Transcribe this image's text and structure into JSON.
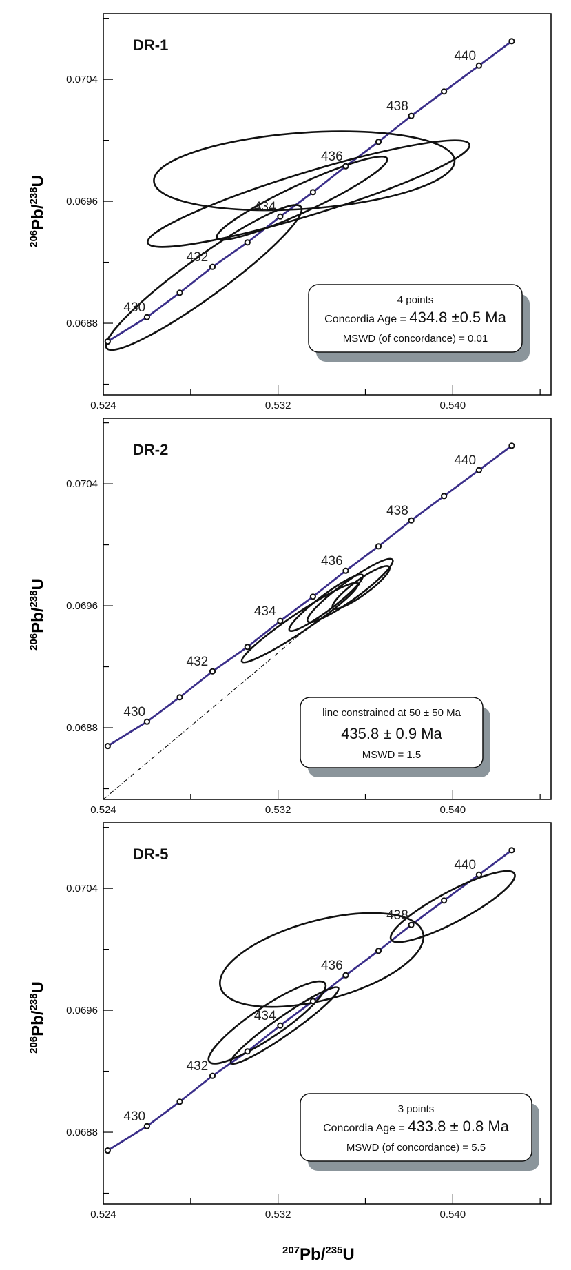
{
  "chart_data": [
    {
      "type": "scatter",
      "panel_label": "DR-1",
      "xlim": [
        0.524,
        0.5445
      ],
      "ylim": [
        0.06833,
        0.07083
      ],
      "x_ticks": [
        "0.524",
        "0.532",
        "0.540"
      ],
      "y_ticks": [
        "0.0688",
        "0.0696",
        "0.0704"
      ],
      "concordia": {
        "ages_ma": [
          429,
          430,
          431,
          432,
          433,
          434,
          435,
          436,
          437,
          438,
          439,
          440,
          441
        ],
        "labels": [
          "430",
          "432",
          "434",
          "436",
          "438",
          "440"
        ],
        "points": [
          [
            0.5242,
            0.06868
          ],
          [
            0.526,
            0.06884
          ],
          [
            0.5275,
            0.069
          ],
          [
            0.529,
            0.06917
          ],
          [
            0.5306,
            0.06933
          ],
          [
            0.5321,
            0.0695
          ],
          [
            0.5336,
            0.06966
          ],
          [
            0.5351,
            0.06983
          ],
          [
            0.5366,
            0.06999
          ],
          [
            0.5381,
            0.07016
          ],
          [
            0.5396,
            0.07032
          ],
          [
            0.5412,
            0.07049
          ],
          [
            0.5427,
            0.07065
          ]
        ]
      },
      "ellipses": [
        {
          "center": [
            0.5286,
            0.0691
          ],
          "rx": 0.0055,
          "ry": 0.00013,
          "angle_deg": -36
        },
        {
          "center": [
            0.5332,
            0.0698
          ],
          "rx": 0.0069,
          "ry": 0.00025,
          "angle_deg": -4
        },
        {
          "center": [
            0.5334,
            0.06965
          ],
          "rx": 0.0077,
          "ry": 0.00014,
          "angle_deg": -17
        },
        {
          "center": [
            0.5331,
            0.06962
          ],
          "rx": 0.0043,
          "ry": 9e-05,
          "angle_deg": -25
        }
      ],
      "info_box": {
        "lines": [
          "4 points",
          "Concordia Age = ",
          "434.8 ±0.5 Ma",
          "MSWD (of concordance) = 0.01"
        ]
      }
    },
    {
      "type": "scatter",
      "panel_label": "DR-2",
      "xlim": [
        0.524,
        0.5445
      ],
      "ylim": [
        0.06833,
        0.07083
      ],
      "x_ticks": [
        "0.524",
        "0.532",
        "0.540"
      ],
      "y_ticks": [
        "0.0688",
        "0.0696",
        "0.0704"
      ],
      "concordia": {
        "ages_ma": [
          429,
          430,
          431,
          432,
          433,
          434,
          435,
          436,
          437,
          438,
          439,
          440,
          441
        ],
        "labels": [
          "430",
          "432",
          "434",
          "436",
          "438",
          "440"
        ],
        "points": [
          [
            0.5242,
            0.06868
          ],
          [
            0.526,
            0.06884
          ],
          [
            0.5275,
            0.069
          ],
          [
            0.529,
            0.06917
          ],
          [
            0.5306,
            0.06933
          ],
          [
            0.5321,
            0.0695
          ],
          [
            0.5336,
            0.06966
          ],
          [
            0.5351,
            0.06983
          ],
          [
            0.5366,
            0.06999
          ],
          [
            0.5381,
            0.07016
          ],
          [
            0.5396,
            0.07032
          ],
          [
            0.5412,
            0.07049
          ],
          [
            0.5427,
            0.07065
          ]
        ]
      },
      "ellipses": [
        {
          "center": [
            0.533,
            0.06949
          ],
          "rx": 0.0032,
          "ry": 6e-05,
          "angle_deg": -34
        },
        {
          "center": [
            0.5353,
            0.0697
          ],
          "rx": 0.0024,
          "ry": 6e-05,
          "angle_deg": -36
        },
        {
          "center": [
            0.5342,
            0.06962
          ],
          "rx": 0.0021,
          "ry": 5e-05,
          "angle_deg": -37
        },
        {
          "center": [
            0.5358,
            0.06972
          ],
          "rx": 0.0016,
          "ry": 5e-05,
          "angle_deg": -36
        }
      ],
      "discordia_line": {
        "from": [
          0.524,
          0.06833
        ],
        "to": [
          0.5359,
          0.06976
        ]
      },
      "info_box": {
        "lines": [
          "line constrained at 50 ± 50 Ma",
          "435.8 ± 0.9 Ma",
          "MSWD = 1.5"
        ]
      }
    },
    {
      "type": "scatter",
      "panel_label": "DR-5",
      "xlim": [
        0.524,
        0.5445
      ],
      "ylim": [
        0.06833,
        0.07083
      ],
      "x_ticks": [
        "0.524",
        "0.532",
        "0.540"
      ],
      "y_ticks": [
        "0.0688",
        "0.0696",
        "0.0704"
      ],
      "xlabel": "207Pb/235U",
      "concordia": {
        "ages_ma": [
          429,
          430,
          431,
          432,
          433,
          434,
          435,
          436,
          437,
          438,
          439,
          440,
          441
        ],
        "labels": [
          "430",
          "432",
          "434",
          "436",
          "438",
          "440"
        ],
        "points": [
          [
            0.5242,
            0.06868
          ],
          [
            0.526,
            0.06884
          ],
          [
            0.5275,
            0.069
          ],
          [
            0.529,
            0.06917
          ],
          [
            0.5306,
            0.06933
          ],
          [
            0.5321,
            0.0695
          ],
          [
            0.5336,
            0.06966
          ],
          [
            0.5351,
            0.06983
          ],
          [
            0.5366,
            0.06999
          ],
          [
            0.5381,
            0.07016
          ],
          [
            0.5396,
            0.07032
          ],
          [
            0.5412,
            0.07049
          ],
          [
            0.5427,
            0.07065
          ]
        ]
      },
      "ellipses": [
        {
          "center": [
            0.534,
            0.06993
          ],
          "rx": 0.0048,
          "ry": 0.00026,
          "angle_deg": -15
        },
        {
          "center": [
            0.5323,
            0.0695
          ],
          "rx": 0.003,
          "ry": 6e-05,
          "angle_deg": -35
        },
        {
          "center": [
            0.5315,
            0.06952
          ],
          "rx": 0.0032,
          "ry": 0.0001,
          "angle_deg": -34
        },
        {
          "center": [
            0.54,
            0.07028
          ],
          "rx": 0.0032,
          "ry": 0.0001,
          "angle_deg": -28
        }
      ],
      "info_box": {
        "lines": [
          "3 points",
          "Concordia Age = ",
          "433.8 ± 0.8 Ma",
          "MSWD (of concordance) = 5.5"
        ]
      }
    }
  ],
  "axis_titles": {
    "y_206": "206",
    "y_pb1": "Pb/",
    "y_238": "238",
    "y_u": "U",
    "x_207": "207",
    "x_pb": "Pb/",
    "x_235": "235",
    "x_u": "U"
  },
  "colors": {
    "concordia": "#3b2f8a",
    "ellipse": "#111111",
    "shadow": "#8b959b",
    "frame": "#000000"
  }
}
